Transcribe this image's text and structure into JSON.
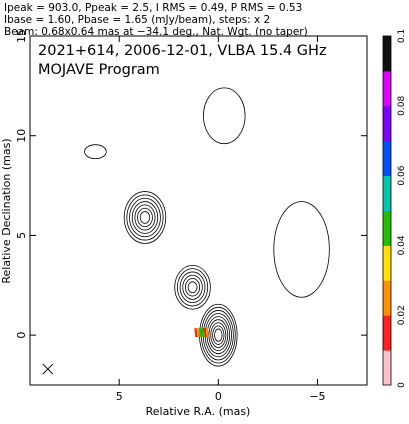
{
  "header": {
    "line1": "Ipeak = 903.0, Ppeak = 2.5, I RMS = 0.49, P RMS = 0.53",
    "line2": "Ibase = 1.60, Pbase = 1.65 (mJy/beam), steps: x 2",
    "line3": "Beam: 0.68x0.64 mas at −34.1 deg., Nat. Wgt. (no taper)"
  },
  "annotation": {
    "line1": "2021+614, 2006-12-01, VLBA 15.4 GHz",
    "line2": "MOJAVE Program"
  },
  "chart_data": {
    "type": "contour",
    "xlabel": "Relative R.A. (mas)",
    "ylabel": "Relative Declination (mas)",
    "xlim": [
      9.5,
      -7.5
    ],
    "ylim": [
      -2.5,
      15
    ],
    "x_ticks": [
      5,
      0,
      -5
    ],
    "x_tick_labels": [
      "5",
      "0",
      "−5"
    ],
    "y_ticks": [
      0,
      5,
      10,
      15
    ],
    "y_tick_labels": [
      "0",
      "5",
      "10",
      "15"
    ],
    "colorbar": {
      "range": [
        0,
        0.1
      ],
      "ticks": [
        0,
        0.02,
        0.04,
        0.06,
        0.08,
        0.1
      ],
      "tick_labels": [
        "0",
        "0.02",
        "0.04",
        "0.06",
        "0.08",
        "0.1"
      ],
      "colors": [
        "#ffc0c8",
        "#ff2020",
        "#ff9000",
        "#ffe000",
        "#20c000",
        "#00c8b0",
        "#0050ff",
        "#8000ff",
        "#e000ff",
        "#101010"
      ]
    },
    "components": [
      {
        "name": "core",
        "x": 0.0,
        "y": 0.0,
        "rx": 0.95,
        "ry": 1.55,
        "levels": 9
      },
      {
        "name": "inner-jet",
        "x": 1.3,
        "y": 2.4,
        "rx": 0.9,
        "ry": 1.1,
        "levels": 6
      },
      {
        "name": "knot",
        "x": 3.7,
        "y": 5.9,
        "rx": 1.05,
        "ry": 1.3,
        "levels": 7
      },
      {
        "name": "diffuse-north",
        "x": -0.3,
        "y": 11.0,
        "rx": 1.05,
        "ry": 1.4,
        "levels": 1
      },
      {
        "name": "diffuse-east",
        "x": 6.2,
        "y": 9.2,
        "rx": 0.55,
        "ry": 0.35,
        "levels": 1
      },
      {
        "name": "diffuse-west",
        "x": -4.2,
        "y": 4.3,
        "rx": 1.4,
        "ry": 2.4,
        "levels": 1
      }
    ],
    "pol_vectors": {
      "x": 0.85,
      "y": 0.1,
      "count": 6,
      "colors": [
        "#ff2020",
        "#ff9000",
        "#20c000",
        "#20c000",
        "#ff2020",
        "#ff9000"
      ]
    },
    "beam": {
      "x": 8.6,
      "y": -1.7,
      "major": 0.68,
      "minor": 0.64,
      "pa": -34.1
    }
  }
}
